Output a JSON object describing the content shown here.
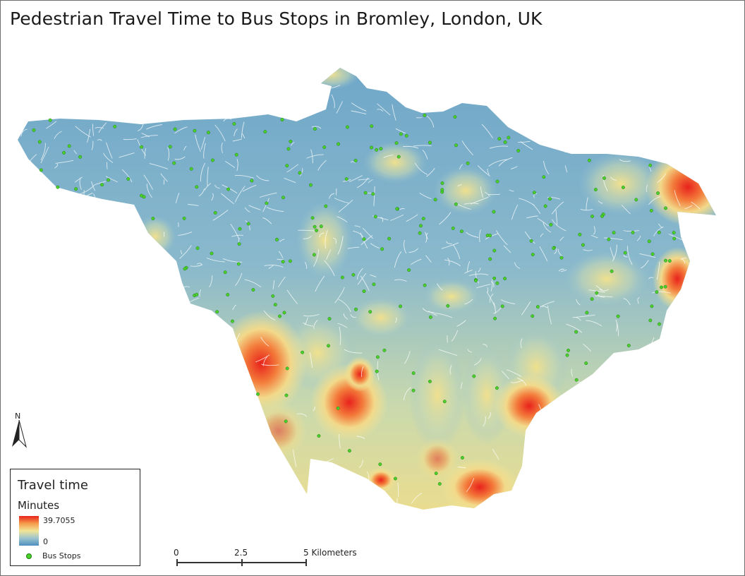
{
  "map": {
    "title": "Pedestrian Travel Time to Bus Stops in Bromley, London, UK",
    "colors": {
      "low": "#4f8fc0",
      "mid_low": "#9cc4cf",
      "mid": "#f2e596",
      "mid_high": "#f59b4a",
      "high": "#e8221c",
      "bus_stop": "#4ad12a",
      "roads": "#ffffff"
    },
    "north_arrow": {
      "label": "N",
      "icon": "north-arrow-icon"
    },
    "legend": {
      "title": "Travel time",
      "units": "Minutes",
      "max_value": "39.7055",
      "min_value": "0",
      "bus_stops_label": "Bus Stops"
    },
    "scale_bar": {
      "labels": [
        "0",
        "2.5",
        "5 Kilometers"
      ],
      "values_km": [
        0,
        2.5,
        5
      ]
    }
  }
}
